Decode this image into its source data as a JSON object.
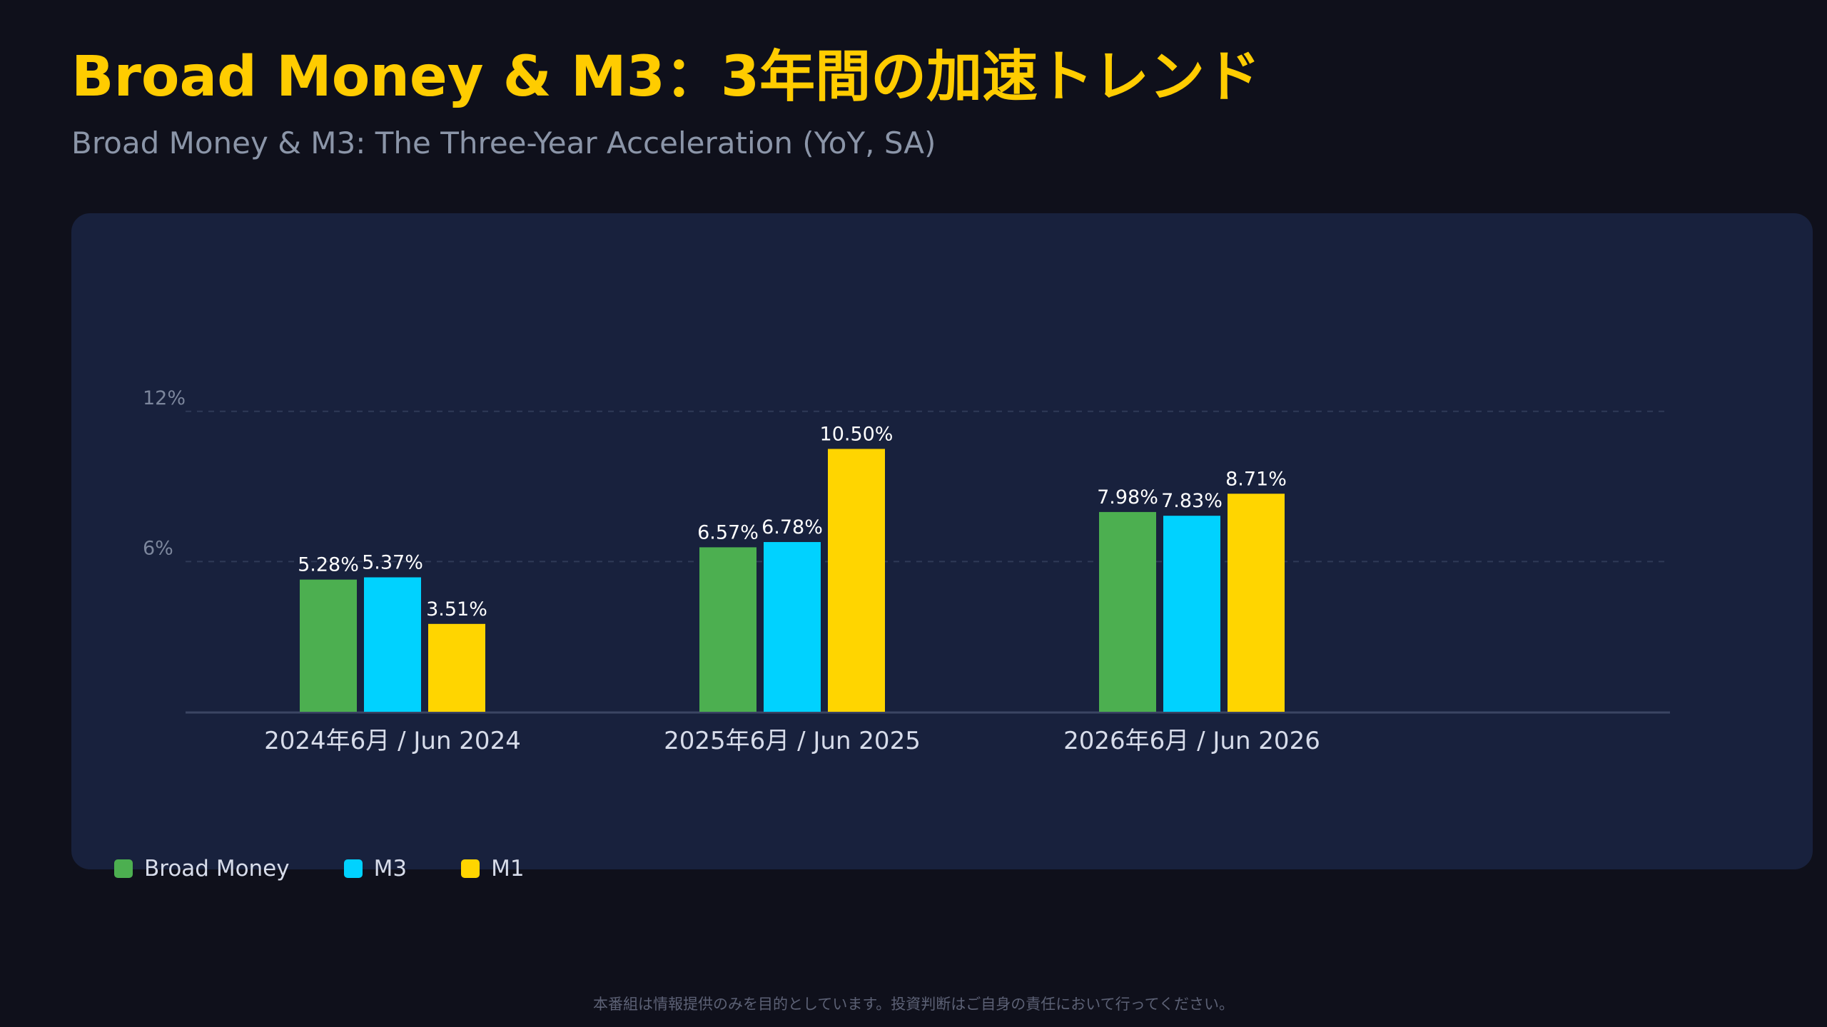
{
  "header": {
    "title": "Broad Money & M3：3年間の加速トレンド",
    "subtitle": "Broad Money & M3: The Three-Year Acceleration (YoY, SA)"
  },
  "chart_data": {
    "type": "bar",
    "categories": [
      "2024年6月 / Jun 2024",
      "2025年6月 / Jun 2025",
      "2026年6月 / Jun 2026"
    ],
    "series": [
      {
        "name": "Broad Money",
        "color": "#4caf50",
        "values": [
          5.28,
          6.57,
          7.98
        ],
        "labels": [
          "5.28%",
          "6.57%",
          "7.98%"
        ]
      },
      {
        "name": "M3",
        "color": "#00d2ff",
        "values": [
          5.37,
          6.78,
          7.83
        ],
        "labels": [
          "5.37%",
          "6.78%",
          "7.83%"
        ]
      },
      {
        "name": "M1",
        "color": "#ffd500",
        "values": [
          3.51,
          10.5,
          8.71
        ],
        "labels": [
          "3.51%",
          "10.50%",
          "8.71%"
        ]
      }
    ],
    "yticks": [
      "6%",
      "12%"
    ],
    "grid": true,
    "legend_position": "bottom-left"
  },
  "footer": {
    "disclaimer": "本番組は情報提供のみを目的としています。投資判断はご自身の責任において行ってください。"
  }
}
